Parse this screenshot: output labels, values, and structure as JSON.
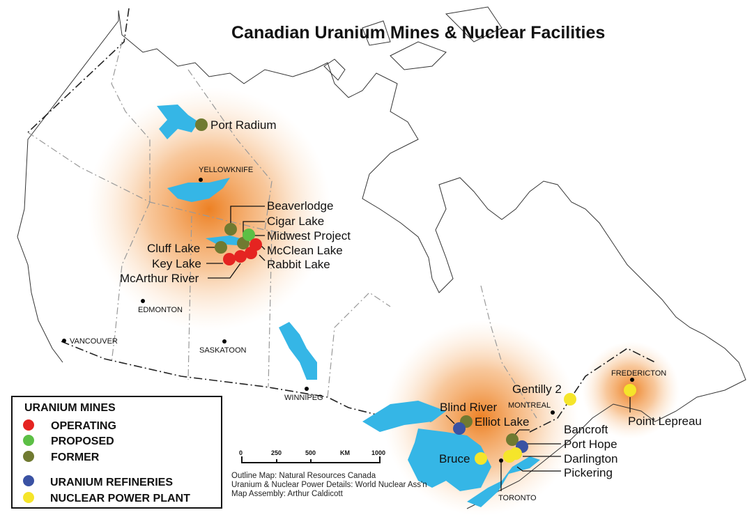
{
  "title": "Canadian Uranium Mines & Nuclear Facilities",
  "colors": {
    "operating": "#e52421",
    "proposed": "#5cbf45",
    "former": "#707a31",
    "refinery": "#3a52a3",
    "power_plant": "#f5e52a",
    "lake": "#35b6e6",
    "glow": "#f08a24"
  },
  "legend": {
    "heading": "URANIUM MINES",
    "items": [
      {
        "label": "OPERATING",
        "type": "operating"
      },
      {
        "label": "PROPOSED",
        "type": "proposed"
      },
      {
        "label": "FORMER",
        "type": "former"
      },
      {
        "label": "URANIUM REFINERIES",
        "type": "refinery"
      },
      {
        "label": "NUCLEAR POWER PLANT",
        "type": "power_plant"
      }
    ]
  },
  "scale_bar": {
    "ticks": [
      "0",
      "250",
      "500",
      "KM",
      "1000"
    ]
  },
  "credits": [
    "Outline Map: Natural Resources Canada",
    "Uranium & Nuclear Power Details: World Nuclear Ass'n",
    "Map Assembly: Arthur Caldicott"
  ],
  "cities": [
    "YELLOWKNIFE",
    "EDMONTON",
    "VANCOUVER",
    "SASKATOON",
    "WINNIPEG",
    "MONTREAL",
    "TORONTO",
    "FREDERICTON"
  ],
  "sites": [
    {
      "name": "Port Radium",
      "type": "former"
    },
    {
      "name": "Beaverlodge",
      "type": "former"
    },
    {
      "name": "Cigar Lake",
      "type": "former"
    },
    {
      "name": "Midwest Project",
      "type": "proposed"
    },
    {
      "name": "Cluff Lake",
      "type": "former"
    },
    {
      "name": "McClean Lake",
      "type": "operating"
    },
    {
      "name": "Key Lake",
      "type": "operating"
    },
    {
      "name": "Rabbit Lake",
      "type": "operating"
    },
    {
      "name": "McArthur River",
      "type": "operating"
    },
    {
      "name": "Blind River",
      "type": "refinery"
    },
    {
      "name": "Elliot Lake",
      "type": "former"
    },
    {
      "name": "Bruce",
      "type": "power_plant"
    },
    {
      "name": "Bancroft",
      "type": "former"
    },
    {
      "name": "Port Hope",
      "type": "refinery"
    },
    {
      "name": "Darlington",
      "type": "power_plant"
    },
    {
      "name": "Pickering",
      "type": "power_plant"
    },
    {
      "name": "Gentilly 2",
      "type": "power_plant"
    },
    {
      "name": "Point Lepreau",
      "type": "power_plant"
    }
  ]
}
